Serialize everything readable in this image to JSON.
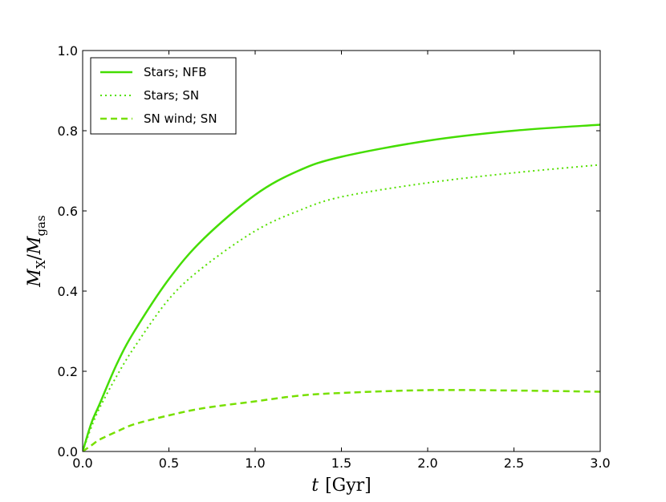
{
  "chart_data": {
    "type": "line",
    "xlabel": {
      "var": "t",
      "unit": "[Gyr]"
    },
    "ylabel": {
      "main": "M",
      "sub1": "X",
      "sep": "/",
      "main2": "M",
      "sub2": "gas"
    },
    "xlim": [
      0.0,
      3.0
    ],
    "ylim": [
      0.0,
      1.0
    ],
    "xticks": [
      "0.0",
      "0.5",
      "1.0",
      "1.5",
      "2.0",
      "2.5",
      "3.0"
    ],
    "yticks": [
      "0.0",
      "0.2",
      "0.4",
      "0.6",
      "0.8",
      "1.0"
    ],
    "legend_position": "top-left",
    "grid": false,
    "series": [
      {
        "name": "Stars; NFB",
        "style": "solid",
        "color": "#44dd00",
        "x": [
          0.0,
          0.05,
          0.1,
          0.2,
          0.3,
          0.5,
          0.7,
          1.0,
          1.25,
          1.5,
          2.0,
          2.5,
          3.0
        ],
        "y": [
          0.0,
          0.07,
          0.12,
          0.22,
          0.3,
          0.43,
          0.53,
          0.64,
          0.7,
          0.735,
          0.775,
          0.8,
          0.815
        ]
      },
      {
        "name": "Stars; SN",
        "style": "dotted",
        "color": "#55e000",
        "x": [
          0.0,
          0.05,
          0.1,
          0.2,
          0.3,
          0.5,
          0.7,
          1.0,
          1.25,
          1.5,
          2.0,
          2.5,
          3.0
        ],
        "y": [
          0.0,
          0.06,
          0.11,
          0.19,
          0.26,
          0.38,
          0.46,
          0.55,
          0.6,
          0.635,
          0.67,
          0.695,
          0.715
        ]
      },
      {
        "name": "SN wind; SN",
        "style": "dashed",
        "color": "#77e000",
        "x": [
          0.0,
          0.05,
          0.1,
          0.2,
          0.3,
          0.5,
          0.7,
          1.0,
          1.25,
          1.5,
          2.0,
          2.5,
          3.0
        ],
        "y": [
          0.0,
          0.015,
          0.03,
          0.05,
          0.068,
          0.09,
          0.108,
          0.125,
          0.139,
          0.146,
          0.153,
          0.152,
          0.149
        ]
      }
    ]
  }
}
